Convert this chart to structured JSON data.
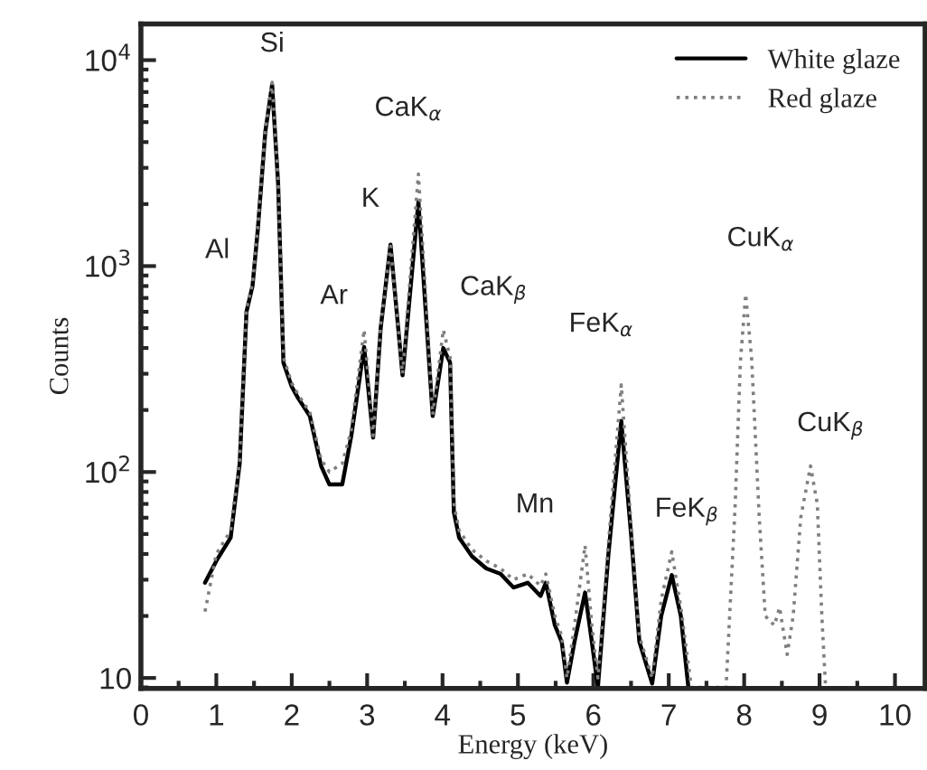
{
  "chart_data": {
    "type": "line",
    "xlabel": "Energy (keV)",
    "ylabel": "Counts",
    "log": "y",
    "xlim": [
      0,
      10.4
    ],
    "xticks": [
      0,
      1,
      2,
      3,
      4,
      5,
      6,
      7,
      8,
      9,
      10
    ],
    "ylim": [
      8.9,
      15000
    ],
    "yticks": [
      {
        "value": 10,
        "label": "10"
      },
      {
        "value": 100,
        "label": "10$^{2}$"
      },
      {
        "value": 1000,
        "label": "10$^{3}$"
      },
      {
        "value": 10000,
        "label": "10$^{4}$"
      }
    ],
    "grid": false,
    "legend": "top right",
    "marker": "none",
    "series": [
      {
        "name": "White glaze",
        "color": "#000000",
        "line_style": "solid",
        "x": [
          0.85,
          1.0,
          1.19,
          1.31,
          1.4,
          1.48,
          1.55,
          1.65,
          1.74,
          1.82,
          1.89,
          2.0,
          2.08,
          2.24,
          2.39,
          2.5,
          2.67,
          2.79,
          2.96,
          3.08,
          3.18,
          3.31,
          3.47,
          3.68,
          3.87,
          4.01,
          4.1,
          4.15,
          4.22,
          4.39,
          4.58,
          4.77,
          4.94,
          5.13,
          5.3,
          5.37,
          5.49,
          5.58,
          5.65,
          5.75,
          5.89,
          5.98,
          6.06,
          6.2,
          6.37,
          6.5,
          6.61,
          6.78,
          6.9,
          7.04,
          7.16,
          7.26
        ],
        "values": [
          29,
          37,
          48,
          110,
          600,
          800,
          1500,
          4500,
          7600,
          2500,
          340,
          260,
          230,
          187,
          107,
          87,
          87,
          150,
          405,
          147,
          500,
          1270,
          295,
          2050,
          187,
          400,
          340,
          64,
          48,
          39,
          34,
          32,
          27.5,
          29,
          25,
          29,
          18,
          15,
          9.5,
          15,
          26,
          15,
          9,
          40,
          177,
          50,
          15,
          9.4,
          20,
          31.6,
          20,
          9
        ]
      },
      {
        "name": "Red glaze",
        "color": "#7f7f7f",
        "line_style": "dotted",
        "x": [
          0.85,
          1.0,
          1.19,
          1.31,
          1.4,
          1.48,
          1.55,
          1.65,
          1.74,
          1.82,
          1.89,
          2.0,
          2.08,
          2.24,
          2.39,
          2.5,
          2.67,
          2.79,
          2.96,
          3.08,
          3.18,
          3.31,
          3.47,
          3.68,
          3.87,
          4.01,
          4.1,
          4.15,
          4.22,
          4.39,
          4.58,
          4.77,
          4.94,
          5.13,
          5.3,
          5.37,
          5.49,
          5.58,
          5.65,
          5.75,
          5.89,
          5.98,
          6.06,
          6.2,
          6.37,
          6.5,
          6.61,
          6.78,
          6.9,
          7.04,
          7.16,
          7.3,
          7.76,
          7.88,
          7.95,
          8.02,
          8.1,
          8.2,
          8.28,
          8.4,
          8.47,
          8.57,
          8.65,
          8.75,
          8.88,
          8.97,
          9.03,
          9.08
        ],
        "values": [
          21,
          40,
          52,
          115,
          620,
          820,
          1550,
          4600,
          7800,
          2600,
          360,
          270,
          240,
          195,
          115,
          100,
          110,
          160,
          490,
          150,
          520,
          1250,
          300,
          2800,
          190,
          490,
          360,
          70,
          52,
          42,
          37,
          34,
          30,
          32,
          28,
          32,
          20,
          16,
          10,
          18,
          44,
          18,
          10,
          45,
          265,
          55,
          16,
          10,
          24,
          41,
          22,
          9,
          9,
          68,
          343,
          730,
          350,
          60,
          20,
          18,
          22,
          13,
          20,
          60,
          107,
          70,
          20,
          9
        ]
      }
    ],
    "annotations": [
      {
        "text": "Al",
        "x": 1.48,
        "y": 800
      },
      {
        "text": "Si",
        "x": 1.74,
        "y": 7600
      },
      {
        "text": "Ar",
        "x": 2.96,
        "y": 405
      },
      {
        "text": "K",
        "x": 3.31,
        "y": 1270
      },
      {
        "text": "CaK$_{α}$",
        "x": 3.68,
        "y": 2800
      },
      {
        "text": "CaK$_{β}$",
        "x": 4.01,
        "y": 490
      },
      {
        "text": "Mn",
        "x": 5.89,
        "y": 44
      },
      {
        "text": "FeK$_{α}$",
        "x": 6.37,
        "y": 265
      },
      {
        "text": "FeK$_{β}$",
        "x": 7.04,
        "y": 41
      },
      {
        "text": "CuK$_{α}$",
        "x": 8.02,
        "y": 730
      },
      {
        "text": "CuK$_{β}$",
        "x": 8.88,
        "y": 107
      }
    ]
  }
}
